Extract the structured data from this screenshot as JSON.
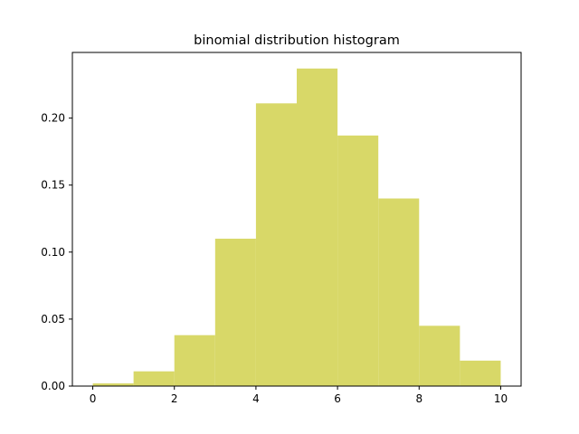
{
  "chart_data": {
    "type": "bar",
    "title": "binomial distribution histogram",
    "xlabel": "",
    "ylabel": "",
    "bin_edges": [
      0,
      1,
      2,
      3,
      4,
      5,
      6,
      7,
      8,
      9,
      10
    ],
    "values": [
      0.002,
      0.011,
      0.038,
      0.11,
      0.211,
      0.237,
      0.187,
      0.14,
      0.045,
      0.019
    ],
    "xlim": [
      -0.5,
      10.5
    ],
    "ylim": [
      0,
      0.249
    ],
    "x_ticks": [
      0,
      2,
      4,
      6,
      8,
      10
    ],
    "x_tick_labels": [
      "0",
      "2",
      "4",
      "6",
      "8",
      "10"
    ],
    "y_ticks": [
      0,
      0.05,
      0.1,
      0.15,
      0.2
    ],
    "y_tick_labels": [
      "0.00",
      "0.05",
      "0.10",
      "0.15",
      "0.20"
    ],
    "grid": false,
    "legend": "none",
    "bar_color": "#d8d868"
  }
}
